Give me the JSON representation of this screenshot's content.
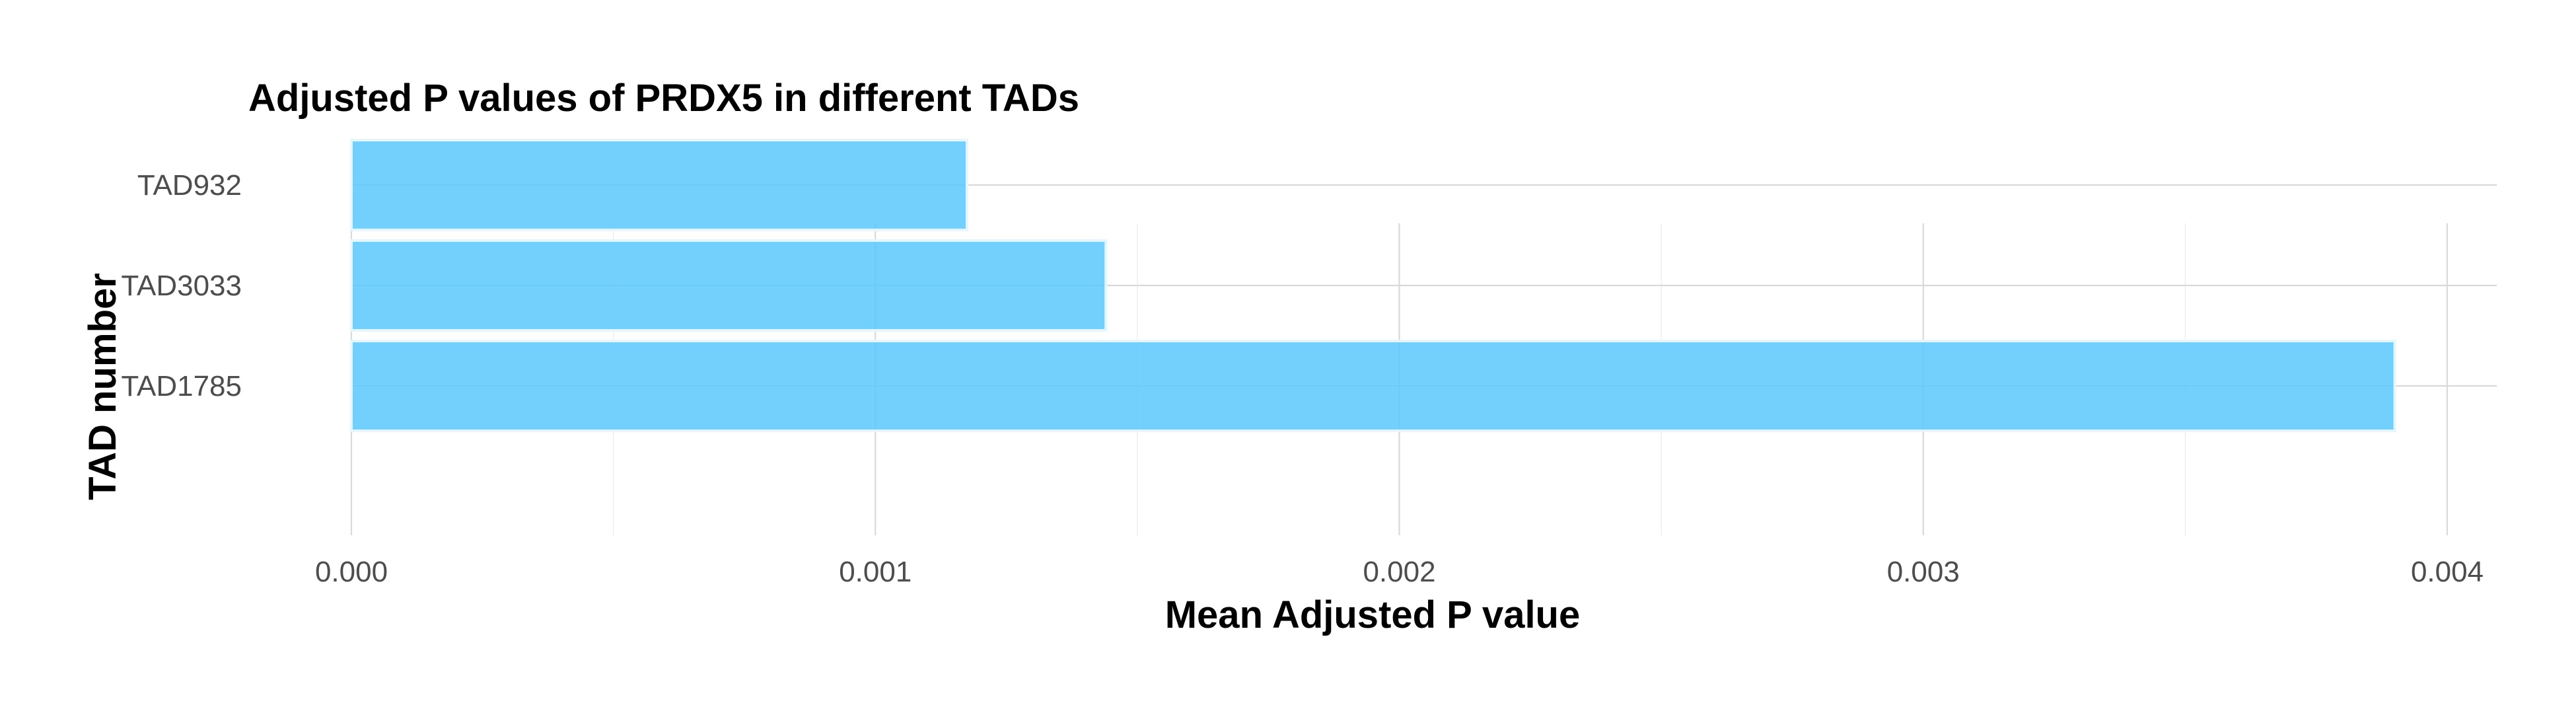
{
  "chart_data": {
    "type": "bar",
    "orientation": "horizontal",
    "title": "Adjusted P values of PRDX5 in different TADs",
    "xlabel": "Mean Adjusted P value",
    "ylabel": "TAD number",
    "categories": [
      "TAD932",
      "TAD3033",
      "TAD1785"
    ],
    "values": [
      0.001175,
      0.00144,
      0.0039
    ],
    "xlim": [
      0,
      0.004
    ],
    "xticks": [
      0.0,
      0.001,
      0.002,
      0.003,
      0.004
    ],
    "xtick_labels": [
      "0.000",
      "0.001",
      "0.002",
      "0.003",
      "0.004"
    ],
    "grid": true,
    "legend": "none",
    "bar_color": "#5bc8fb",
    "bar_border_color": "#e6f6ff"
  }
}
